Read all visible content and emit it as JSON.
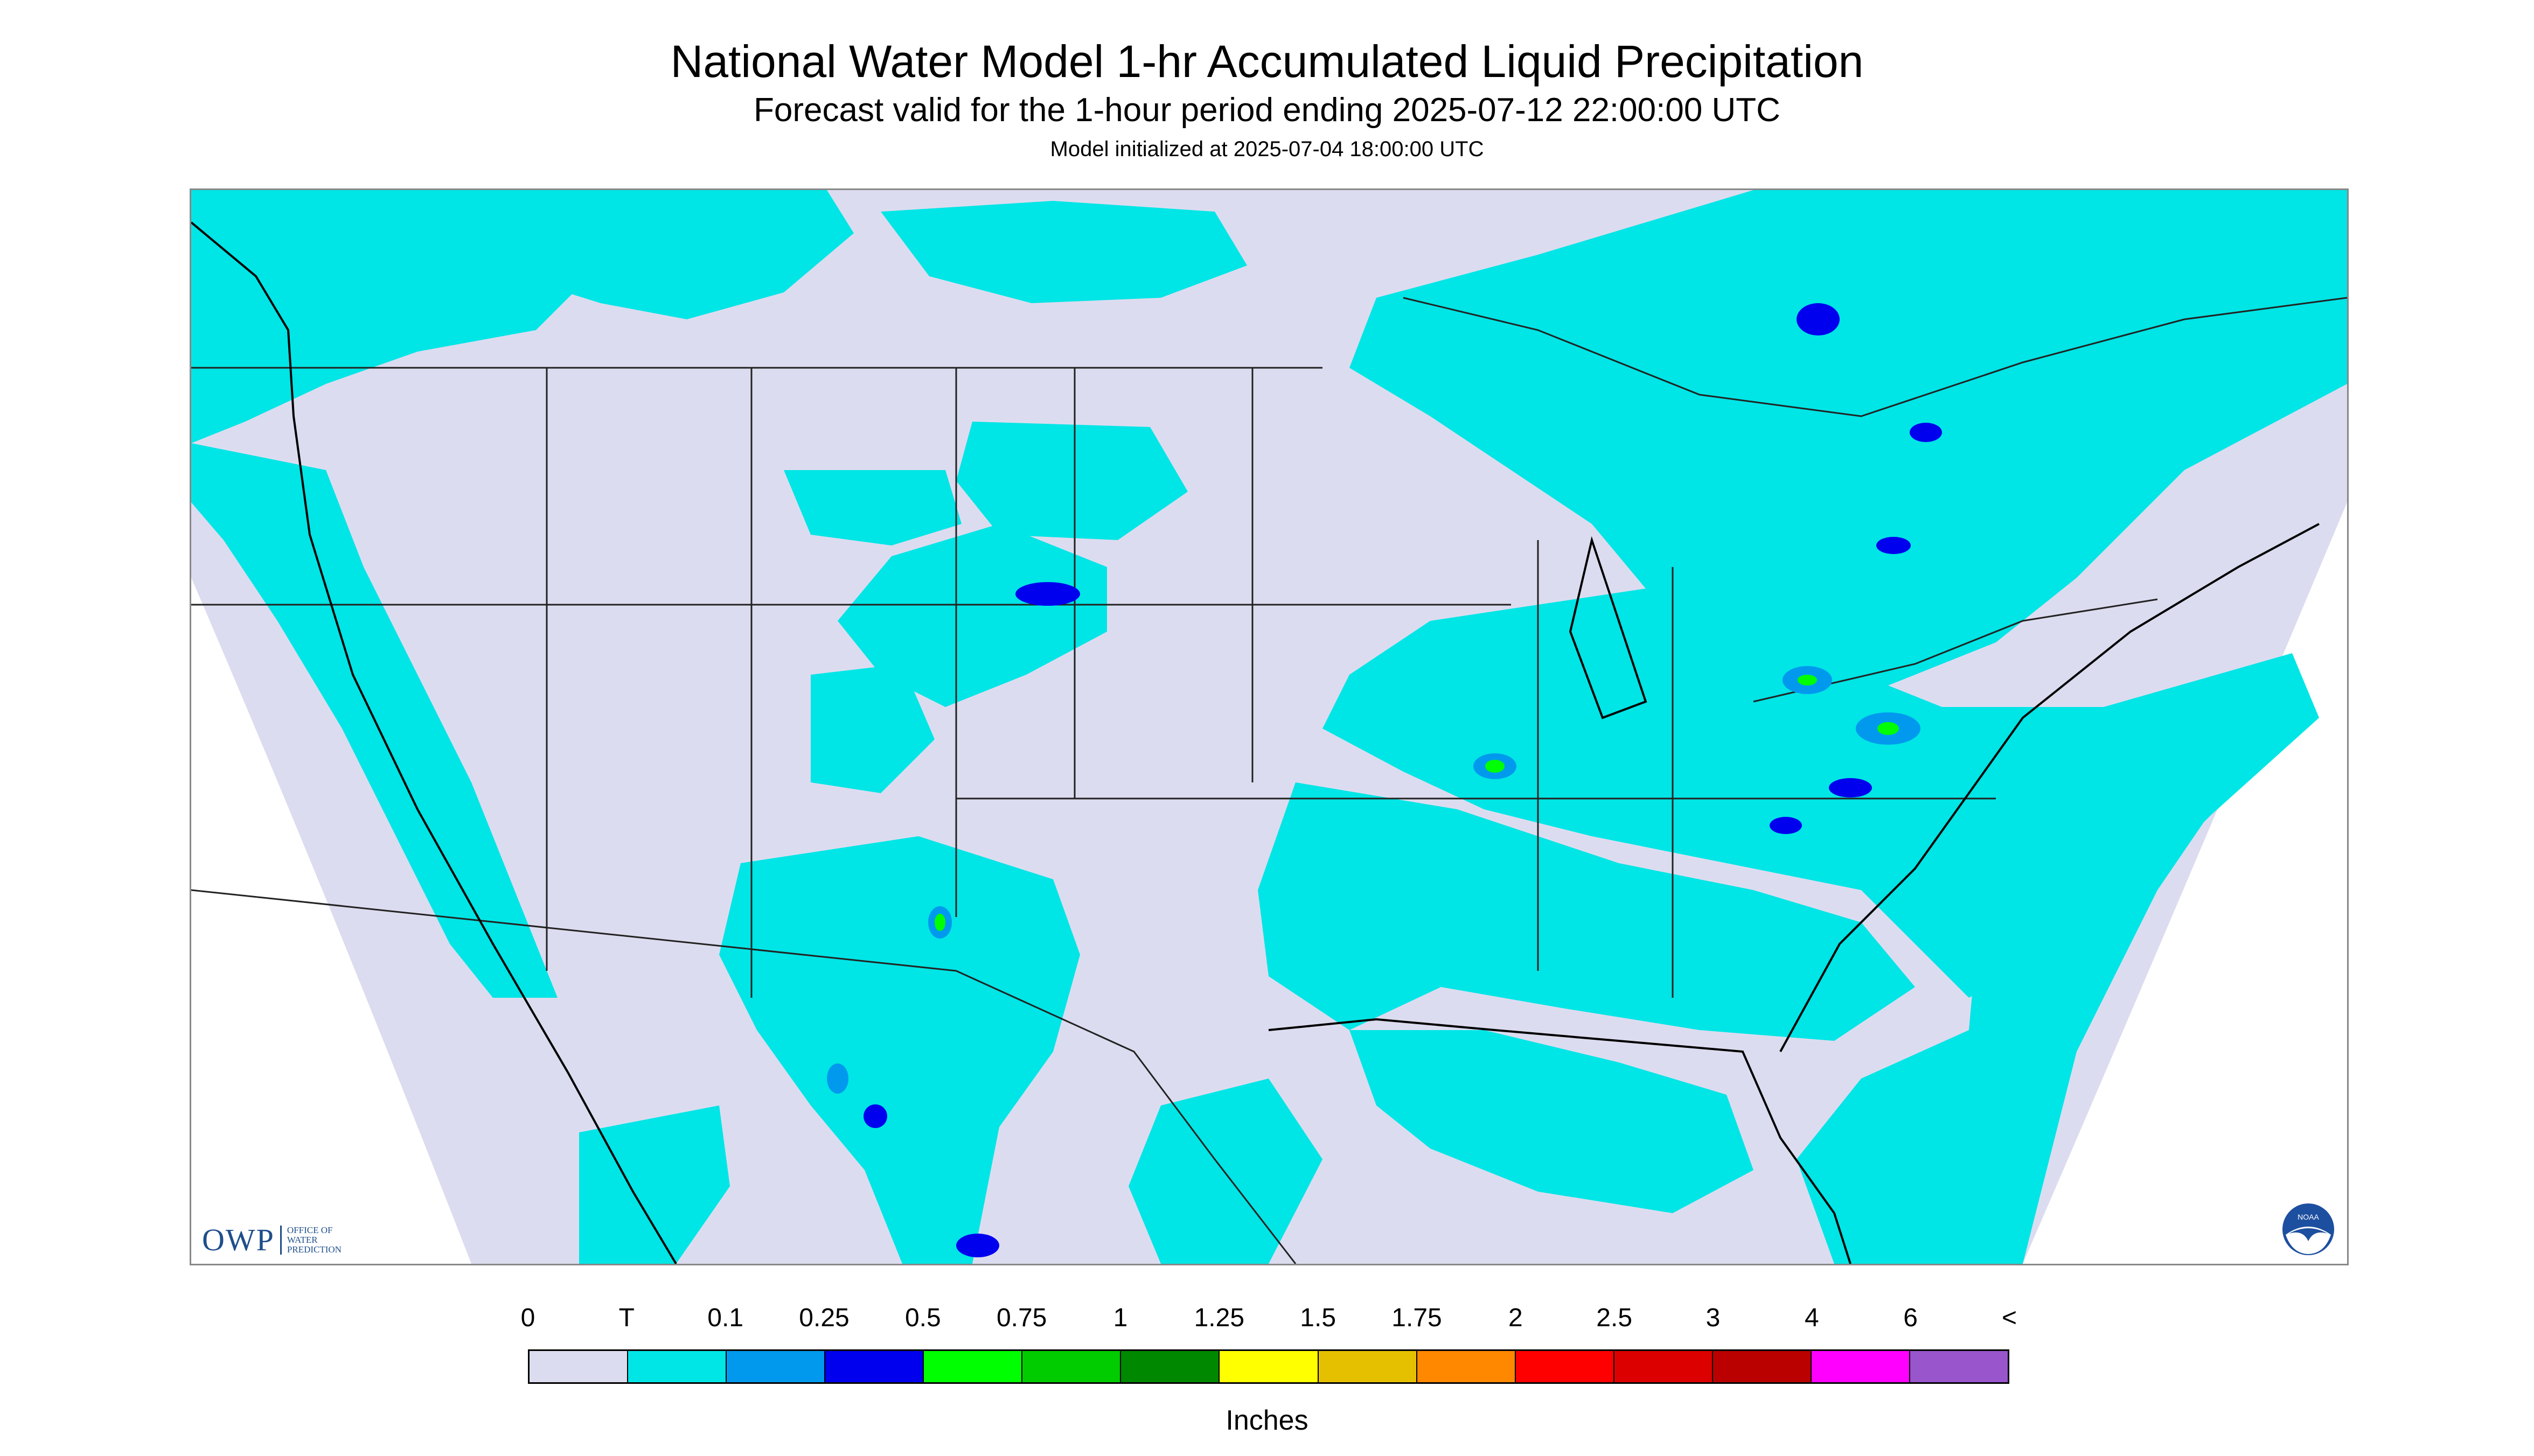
{
  "header": {
    "title": "National Water Model 1-hr Accumulated Liquid Precipitation",
    "subtitle": "Forecast valid for the 1-hour period ending 2025-07-12 22:00:00 UTC",
    "init": "Model initialized at 2025-07-04 18:00:00 UTC"
  },
  "map": {
    "background_color": "#dcdcf0",
    "precip_colors": {
      "trace": "#00e5e5",
      "light": "#0099ee",
      "moderate": "#0000ee",
      "heavy": "#00ff00"
    },
    "icons": [
      "owp-logo",
      "noaa-logo"
    ]
  },
  "branding": {
    "owp_mark": "OWP",
    "owp_text_lines": [
      "OFFICE OF",
      "WATER",
      "PREDICTION"
    ],
    "noaa_text": "NOAA"
  },
  "legend": {
    "labels": [
      "0",
      "T",
      "0.1",
      "0.25",
      "0.5",
      "0.75",
      "1",
      "1.25",
      "1.5",
      "1.75",
      "2",
      "2.5",
      "3",
      "4",
      "6",
      "<"
    ],
    "colors": [
      "#dcdcf0",
      "#00e5e5",
      "#0099ee",
      "#0000ee",
      "#00ff00",
      "#00cc00",
      "#008800",
      "#ffff00",
      "#e5c000",
      "#ff8800",
      "#ff0000",
      "#dd0000",
      "#bb0000",
      "#ff00ff",
      "#9955cc"
    ],
    "units": "Inches"
  }
}
